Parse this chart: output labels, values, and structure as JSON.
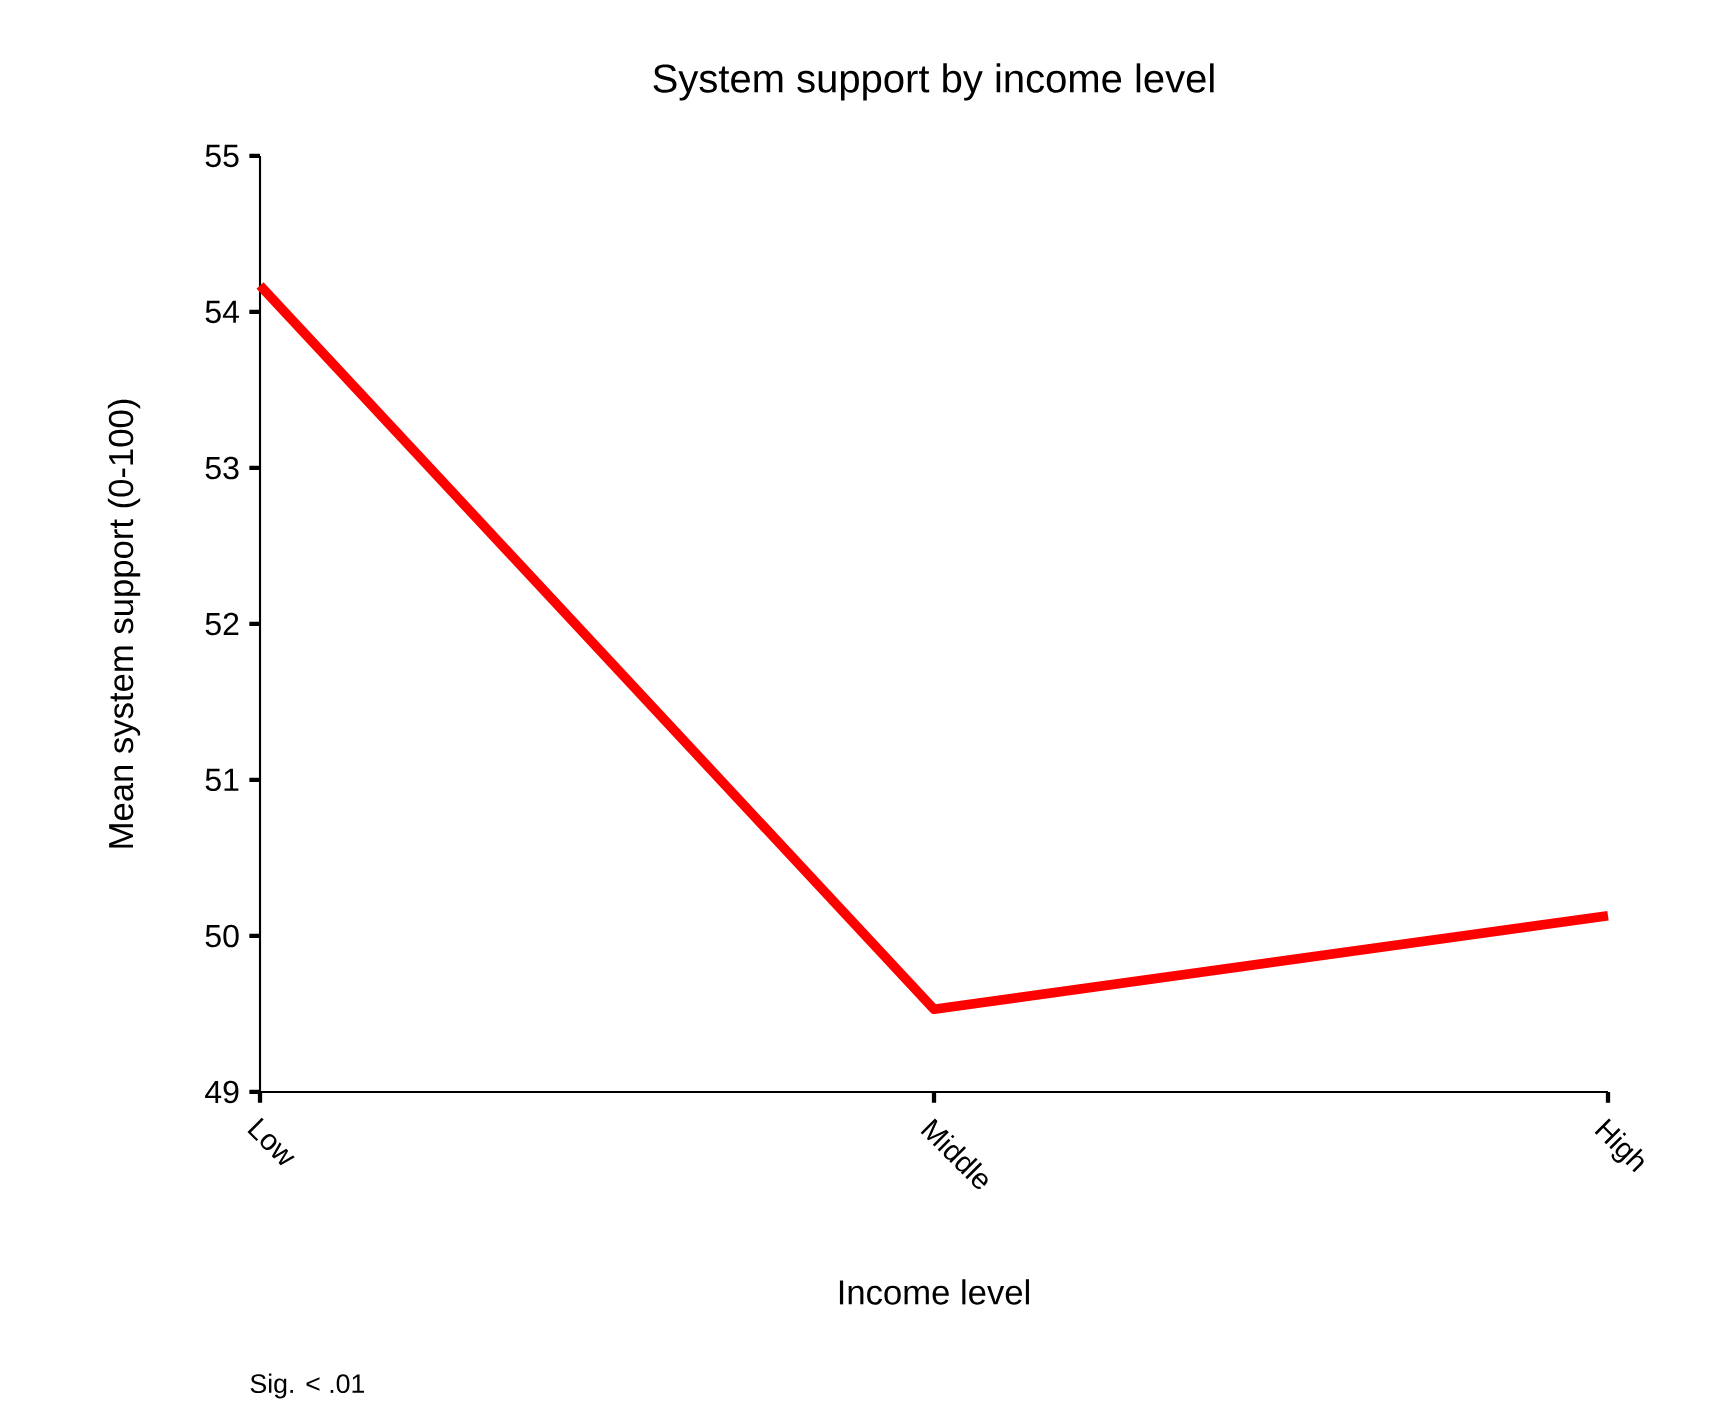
{
  "chart_data": {
    "type": "line",
    "title": "System support by income level",
    "xlabel": "Income level",
    "ylabel": "Mean system support  (0-100)",
    "categories": [
      "Low",
      "Middle",
      "High"
    ],
    "series": [
      {
        "color": "#ff0000",
        "values": [
          54.17,
          49.53,
          50.13
        ]
      }
    ],
    "ylim": [
      49,
      55
    ],
    "yticks": [
      49,
      50,
      51,
      52,
      53,
      54,
      55
    ],
    "grid": false,
    "marker": "none",
    "line_style": "solid",
    "annotations": [
      "Sig. < .01"
    ]
  }
}
